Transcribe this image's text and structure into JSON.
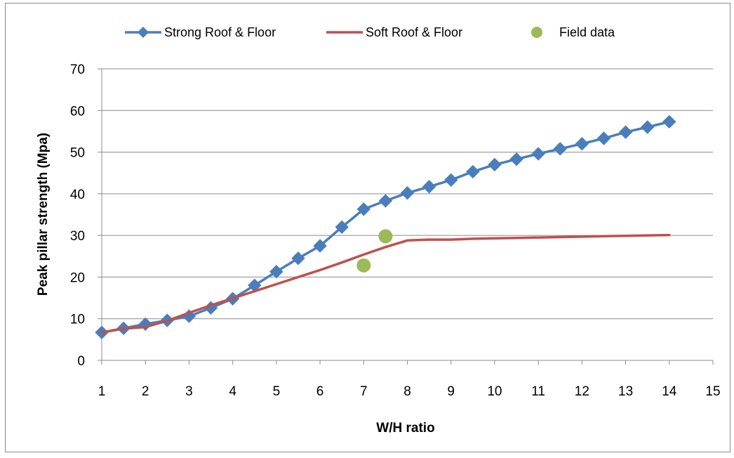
{
  "chart_data": {
    "type": "line",
    "title": "",
    "xlabel": "W/H ratio",
    "ylabel": "Peak pillar strength (Mpa)",
    "xlim": [
      1,
      15
    ],
    "ylim": [
      0,
      70
    ],
    "xticks": [
      1,
      2,
      3,
      4,
      5,
      6,
      7,
      8,
      9,
      10,
      11,
      12,
      13,
      14,
      15
    ],
    "yticks": [
      0,
      10,
      20,
      30,
      40,
      50,
      60,
      70
    ],
    "grid": "horizontal",
    "legend_position": "top",
    "series": [
      {
        "name": "Strong Roof & Floor",
        "style": "line-diamond",
        "color": "#4a7ebb",
        "x": [
          1,
          1.5,
          2,
          2.5,
          3,
          3.5,
          4,
          4.5,
          5,
          5.5,
          6,
          6.5,
          7,
          7.5,
          8,
          8.5,
          9,
          9.5,
          10,
          10.5,
          11,
          11.5,
          12,
          12.5,
          13,
          13.5,
          14
        ],
        "y": [
          6.7,
          7.7,
          8.7,
          9.6,
          10.6,
          12.6,
          14.8,
          18.0,
          21.3,
          24.5,
          27.5,
          32.0,
          36.3,
          38.3,
          40.2,
          41.7,
          43.3,
          45.3,
          47.0,
          48.3,
          49.6,
          50.8,
          52.0,
          53.3,
          54.8,
          56.0,
          57.3
        ]
      },
      {
        "name": "Soft Roof & Floor",
        "style": "line",
        "color": "#c0504d",
        "x": [
          1,
          1.5,
          2,
          2.5,
          3,
          3.5,
          4,
          4.5,
          5,
          5.5,
          6,
          6.5,
          7,
          7.5,
          8,
          8.5,
          9,
          9.5,
          10,
          10.5,
          11,
          11.5,
          12,
          12.5,
          13,
          13.5,
          14
        ],
        "y": [
          6.7,
          7.6,
          8.0,
          9.5,
          11.4,
          13.2,
          14.9,
          16.6,
          18.3,
          20.0,
          21.7,
          23.5,
          25.4,
          27.2,
          28.8,
          29.0,
          29.0,
          29.2,
          29.3,
          29.4,
          29.5,
          29.6,
          29.7,
          29.8,
          29.9,
          30.0,
          30.1
        ]
      },
      {
        "name": "Field data",
        "style": "scatter",
        "color": "#9bbb59",
        "x": [
          7,
          7.5
        ],
        "y": [
          22.8,
          29.8
        ]
      }
    ]
  }
}
